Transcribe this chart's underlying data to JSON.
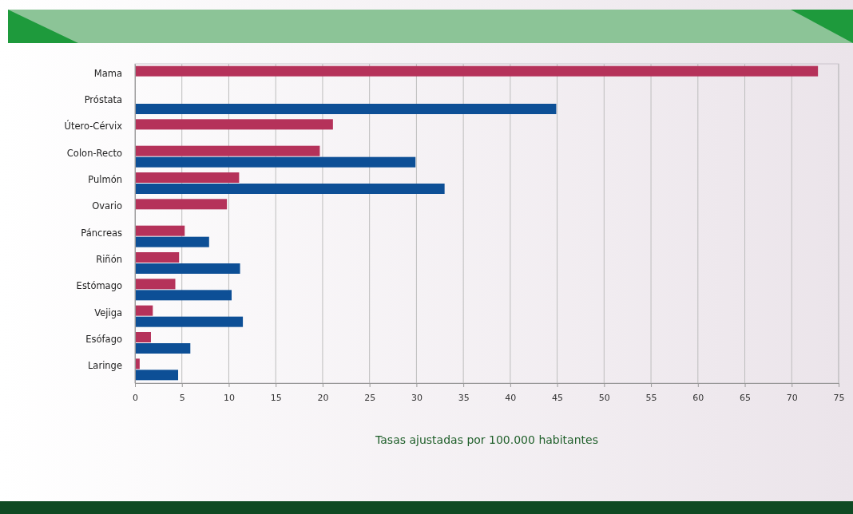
{
  "chart_data": {
    "type": "bar",
    "orientation": "horizontal",
    "xlabel": "Tasas ajustadas por 100.000 habitantes",
    "categories": [
      "Mama",
      "Próstata",
      "Útero-Cérvix",
      "Colon-Recto",
      "Pulmón",
      "Ovario",
      "Páncreas",
      "Riñón",
      "Estómago",
      "Vejiga",
      "Esófago",
      "Laringe"
    ],
    "series": [
      {
        "color": "#b5325a",
        "values": [
          72.8,
          null,
          21.1,
          19.7,
          11.1,
          9.8,
          5.3,
          4.7,
          4.3,
          1.9,
          1.7,
          0.5
        ]
      },
      {
        "color": "#0d4f96",
        "values": [
          null,
          44.9,
          null,
          29.9,
          33.0,
          null,
          7.9,
          11.2,
          10.3,
          11.5,
          5.9,
          4.6
        ]
      }
    ],
    "xlim": [
      0,
      75
    ],
    "xticks": [
      0,
      5,
      10,
      15,
      20,
      25,
      30,
      35,
      40,
      45,
      50,
      55,
      60,
      65,
      70,
      75
    ],
    "grid": "x"
  }
}
